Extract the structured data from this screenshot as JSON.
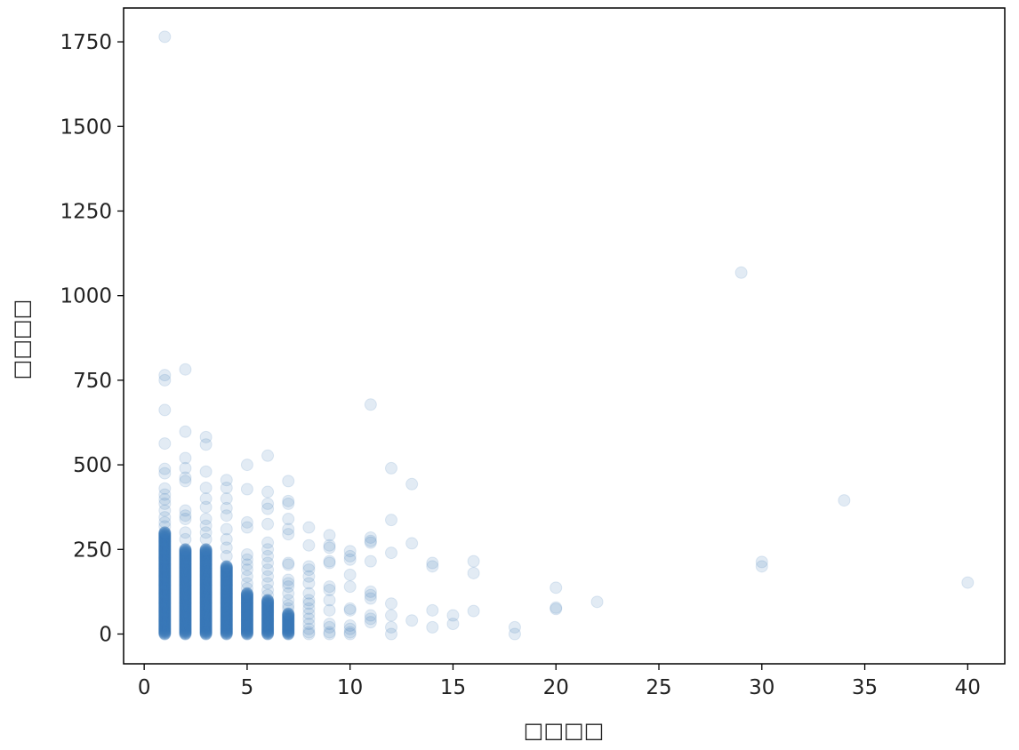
{
  "chart_data": {
    "type": "scatter",
    "title": "",
    "xlabel": "□□□□",
    "ylabel": "□□□□",
    "xlim": [
      -1,
      41.8
    ],
    "ylim": [
      -88,
      1850
    ],
    "xticks": [
      0,
      5,
      10,
      15,
      20,
      25,
      30,
      35,
      40
    ],
    "yticks": [
      0,
      250,
      500,
      750,
      1000,
      1250,
      1500,
      1750
    ],
    "grid": false,
    "legend": "none",
    "point_color": "#3a78b8",
    "point_alpha": 0.15,
    "dense_columns": [
      {
        "x": 1,
        "ymin": 0,
        "ymax": 300
      },
      {
        "x": 2,
        "ymin": 0,
        "ymax": 250
      },
      {
        "x": 3,
        "ymin": 0,
        "ymax": 250
      },
      {
        "x": 4,
        "ymin": 0,
        "ymax": 200
      },
      {
        "x": 5,
        "ymin": 0,
        "ymax": 120
      },
      {
        "x": 6,
        "ymin": 0,
        "ymax": 100
      },
      {
        "x": 7,
        "ymin": 0,
        "ymax": 60
      }
    ],
    "points": [
      {
        "x": 1,
        "y": 1765
      },
      {
        "x": 1,
        "y": 765
      },
      {
        "x": 1,
        "y": 750
      },
      {
        "x": 1,
        "y": 662
      },
      {
        "x": 1,
        "y": 563
      },
      {
        "x": 1,
        "y": 488
      },
      {
        "x": 1,
        "y": 475
      },
      {
        "x": 1,
        "y": 430
      },
      {
        "x": 1,
        "y": 412
      },
      {
        "x": 1,
        "y": 398
      },
      {
        "x": 1,
        "y": 385
      },
      {
        "x": 1,
        "y": 365
      },
      {
        "x": 1,
        "y": 345
      },
      {
        "x": 1,
        "y": 330
      },
      {
        "x": 1,
        "y": 318
      },
      {
        "x": 2,
        "y": 782
      },
      {
        "x": 2,
        "y": 598
      },
      {
        "x": 2,
        "y": 520
      },
      {
        "x": 2,
        "y": 490
      },
      {
        "x": 2,
        "y": 462
      },
      {
        "x": 2,
        "y": 452
      },
      {
        "x": 2,
        "y": 365
      },
      {
        "x": 2,
        "y": 350
      },
      {
        "x": 2,
        "y": 340
      },
      {
        "x": 2,
        "y": 300
      },
      {
        "x": 2,
        "y": 280
      },
      {
        "x": 3,
        "y": 582
      },
      {
        "x": 3,
        "y": 560
      },
      {
        "x": 3,
        "y": 480
      },
      {
        "x": 3,
        "y": 432
      },
      {
        "x": 3,
        "y": 400
      },
      {
        "x": 3,
        "y": 375
      },
      {
        "x": 3,
        "y": 340
      },
      {
        "x": 3,
        "y": 320
      },
      {
        "x": 3,
        "y": 300
      },
      {
        "x": 3,
        "y": 280
      },
      {
        "x": 4,
        "y": 455
      },
      {
        "x": 4,
        "y": 432
      },
      {
        "x": 4,
        "y": 400
      },
      {
        "x": 4,
        "y": 372
      },
      {
        "x": 4,
        "y": 350
      },
      {
        "x": 4,
        "y": 310
      },
      {
        "x": 4,
        "y": 280
      },
      {
        "x": 4,
        "y": 255
      },
      {
        "x": 4,
        "y": 230
      },
      {
        "x": 5,
        "y": 500
      },
      {
        "x": 5,
        "y": 428
      },
      {
        "x": 5,
        "y": 330
      },
      {
        "x": 5,
        "y": 315
      },
      {
        "x": 5,
        "y": 235
      },
      {
        "x": 5,
        "y": 220
      },
      {
        "x": 5,
        "y": 205
      },
      {
        "x": 5,
        "y": 190
      },
      {
        "x": 5,
        "y": 170
      },
      {
        "x": 5,
        "y": 150
      },
      {
        "x": 5,
        "y": 135
      },
      {
        "x": 6,
        "y": 527
      },
      {
        "x": 6,
        "y": 420
      },
      {
        "x": 6,
        "y": 385
      },
      {
        "x": 6,
        "y": 370
      },
      {
        "x": 6,
        "y": 325
      },
      {
        "x": 6,
        "y": 270
      },
      {
        "x": 6,
        "y": 250
      },
      {
        "x": 6,
        "y": 230
      },
      {
        "x": 6,
        "y": 210
      },
      {
        "x": 6,
        "y": 190
      },
      {
        "x": 6,
        "y": 170
      },
      {
        "x": 6,
        "y": 150
      },
      {
        "x": 6,
        "y": 130
      },
      {
        "x": 6,
        "y": 115
      },
      {
        "x": 7,
        "y": 452
      },
      {
        "x": 7,
        "y": 393
      },
      {
        "x": 7,
        "y": 385
      },
      {
        "x": 7,
        "y": 340
      },
      {
        "x": 7,
        "y": 310
      },
      {
        "x": 7,
        "y": 295
      },
      {
        "x": 7,
        "y": 210
      },
      {
        "x": 7,
        "y": 205
      },
      {
        "x": 7,
        "y": 160
      },
      {
        "x": 7,
        "y": 150
      },
      {
        "x": 7,
        "y": 140
      },
      {
        "x": 7,
        "y": 120
      },
      {
        "x": 7,
        "y": 100
      },
      {
        "x": 7,
        "y": 85
      },
      {
        "x": 7,
        "y": 75
      },
      {
        "x": 8,
        "y": 315
      },
      {
        "x": 8,
        "y": 262
      },
      {
        "x": 8,
        "y": 200
      },
      {
        "x": 8,
        "y": 190
      },
      {
        "x": 8,
        "y": 170
      },
      {
        "x": 8,
        "y": 150
      },
      {
        "x": 8,
        "y": 120
      },
      {
        "x": 8,
        "y": 100
      },
      {
        "x": 8,
        "y": 90
      },
      {
        "x": 8,
        "y": 75
      },
      {
        "x": 8,
        "y": 60
      },
      {
        "x": 8,
        "y": 45
      },
      {
        "x": 8,
        "y": 30
      },
      {
        "x": 8,
        "y": 15
      },
      {
        "x": 8,
        "y": 5
      },
      {
        "x": 8,
        "y": 0
      },
      {
        "x": 9,
        "y": 292
      },
      {
        "x": 9,
        "y": 262
      },
      {
        "x": 9,
        "y": 255
      },
      {
        "x": 9,
        "y": 215
      },
      {
        "x": 9,
        "y": 210
      },
      {
        "x": 9,
        "y": 140
      },
      {
        "x": 9,
        "y": 130
      },
      {
        "x": 9,
        "y": 100
      },
      {
        "x": 9,
        "y": 70
      },
      {
        "x": 9,
        "y": 30
      },
      {
        "x": 9,
        "y": 20
      },
      {
        "x": 9,
        "y": 5
      },
      {
        "x": 9,
        "y": 0
      },
      {
        "x": 10,
        "y": 245
      },
      {
        "x": 10,
        "y": 230
      },
      {
        "x": 10,
        "y": 220
      },
      {
        "x": 10,
        "y": 175
      },
      {
        "x": 10,
        "y": 140
      },
      {
        "x": 10,
        "y": 75
      },
      {
        "x": 10,
        "y": 70
      },
      {
        "x": 10,
        "y": 25
      },
      {
        "x": 10,
        "y": 15
      },
      {
        "x": 10,
        "y": 5
      },
      {
        "x": 10,
        "y": 0
      },
      {
        "x": 11,
        "y": 678
      },
      {
        "x": 11,
        "y": 285
      },
      {
        "x": 11,
        "y": 275
      },
      {
        "x": 11,
        "y": 270
      },
      {
        "x": 11,
        "y": 215
      },
      {
        "x": 11,
        "y": 125
      },
      {
        "x": 11,
        "y": 115
      },
      {
        "x": 11,
        "y": 105
      },
      {
        "x": 11,
        "y": 55
      },
      {
        "x": 11,
        "y": 45
      },
      {
        "x": 11,
        "y": 35
      },
      {
        "x": 12,
        "y": 490
      },
      {
        "x": 12,
        "y": 337
      },
      {
        "x": 12,
        "y": 240
      },
      {
        "x": 12,
        "y": 90
      },
      {
        "x": 12,
        "y": 55
      },
      {
        "x": 12,
        "y": 20
      },
      {
        "x": 12,
        "y": 0
      },
      {
        "x": 13,
        "y": 443
      },
      {
        "x": 13,
        "y": 268
      },
      {
        "x": 13,
        "y": 40
      },
      {
        "x": 14,
        "y": 210
      },
      {
        "x": 14,
        "y": 200
      },
      {
        "x": 14,
        "y": 70
      },
      {
        "x": 14,
        "y": 20
      },
      {
        "x": 15,
        "y": 55
      },
      {
        "x": 15,
        "y": 30
      },
      {
        "x": 16,
        "y": 215
      },
      {
        "x": 16,
        "y": 180
      },
      {
        "x": 16,
        "y": 68
      },
      {
        "x": 18,
        "y": 20
      },
      {
        "x": 18,
        "y": 0
      },
      {
        "x": 20,
        "y": 137
      },
      {
        "x": 20,
        "y": 78
      },
      {
        "x": 20,
        "y": 74
      },
      {
        "x": 22,
        "y": 95
      },
      {
        "x": 29,
        "y": 1068
      },
      {
        "x": 30,
        "y": 213
      },
      {
        "x": 30,
        "y": 200
      },
      {
        "x": 34,
        "y": 395
      },
      {
        "x": 40,
        "y": 152
      }
    ]
  }
}
